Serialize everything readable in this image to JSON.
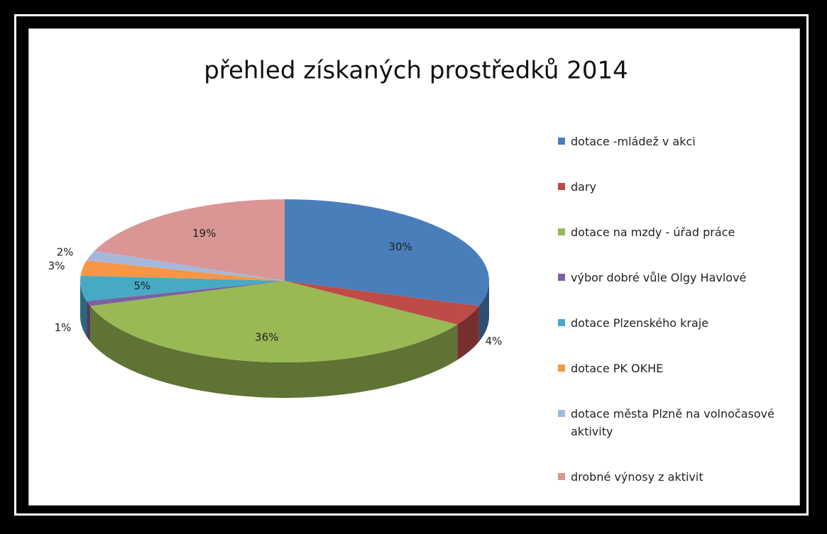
{
  "chart_data": {
    "type": "pie3d",
    "title": "přehled získaných prostředků 2014",
    "categories": [
      "dotace -mládež v akci",
      "dary",
      "dotace na mzdy - úřad práce",
      "výbor dobré vůle Olgy Havlové",
      "dotace Plzenského kraje",
      "dotace PK OKHE",
      "dotace města Plzně na volnočasové aktivity",
      "drobné výnosy z aktivit"
    ],
    "values": [
      30,
      4,
      36,
      1,
      5,
      3,
      2,
      19
    ],
    "value_labels": [
      "30%",
      "4%",
      "36%",
      "1%",
      "5%",
      "3%",
      "2%",
      "19%"
    ],
    "colors": [
      "#4a7ebb",
      "#be4b48",
      "#98b954",
      "#7d60a0",
      "#46aac5",
      "#f79646",
      "#a5b8db",
      "#d99694"
    ],
    "legend": "right"
  }
}
